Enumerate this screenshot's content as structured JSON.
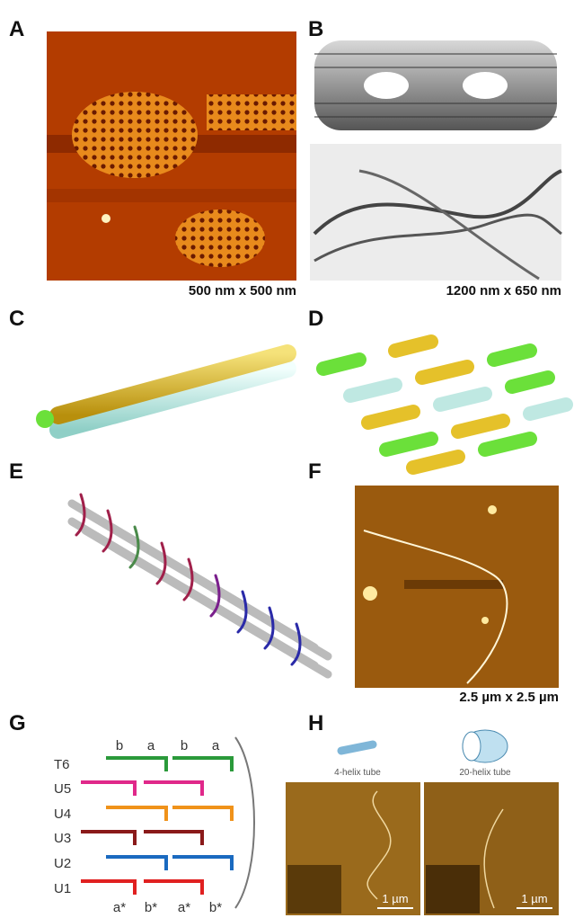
{
  "panels": [
    {
      "label": "A",
      "caption": "500 nm x 500 nm"
    },
    {
      "label": "B",
      "caption": "1200 nm x 650 nm"
    },
    {
      "label": "C"
    },
    {
      "label": "D"
    },
    {
      "label": "E"
    },
    {
      "label": "F",
      "caption": "2.5 µm x 2.5 µm"
    },
    {
      "label": "G",
      "top_labels": [
        "b",
        "a",
        "b",
        "a"
      ],
      "strands": [
        "T6",
        "U5",
        "U4",
        "U3",
        "U2",
        "U1"
      ],
      "bottom_labels": [
        "a*",
        "b*",
        "a*",
        "b*"
      ]
    },
    {
      "label": "H",
      "tubes": [
        "4-helix tube",
        "20-helix tube"
      ],
      "scale_bars": [
        "1 µm",
        "1 µm"
      ]
    }
  ]
}
